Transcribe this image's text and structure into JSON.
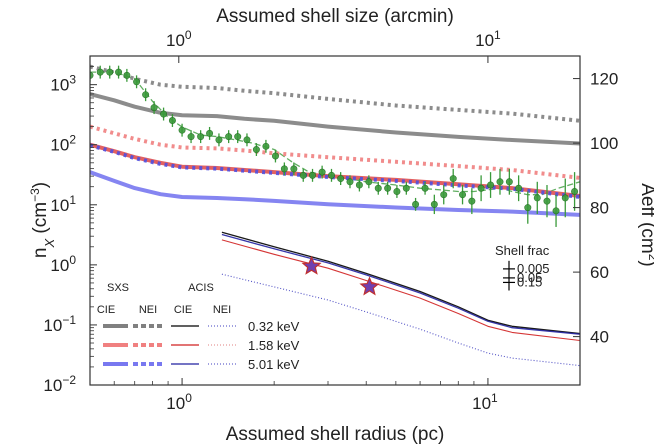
{
  "chart_data": {
    "type": "line",
    "xlabel_bottom": "Assumed shell radius (pc)",
    "xlabel_top": "Assumed shell size (arcmin)",
    "ylabel_left": "n_X (cm^-3)",
    "ylabel_right": "Aeff (cm^2)",
    "x_scale": "log",
    "xlim": [
      0.5,
      20
    ],
    "ylim_left": [
      0.01,
      3000
    ],
    "y_scale_left": "log",
    "ylim_right": [
      25,
      127
    ],
    "y_scale_right": "linear",
    "grid": false,
    "x_ticks": [
      {
        "v": 1,
        "t": "10",
        "e": "0"
      },
      {
        "v": 10,
        "t": "10",
        "e": "1"
      }
    ],
    "x_top_ticks": [
      {
        "v": 0.8,
        "t": "10",
        "e": "0"
      },
      {
        "v": 8.2,
        "t": "10",
        "e": "1"
      }
    ],
    "y_ticks": [
      {
        "v": 0.01,
        "t": "10",
        "e": "−2"
      },
      {
        "v": 0.1,
        "t": "10",
        "e": "−1"
      },
      {
        "v": 1,
        "t": "10",
        "e": "0"
      },
      {
        "v": 10,
        "t": "10",
        "e": "1"
      },
      {
        "v": 100,
        "t": "10",
        "e": "2"
      },
      {
        "v": 1000,
        "t": "10",
        "e": "3"
      }
    ],
    "y_right_ticks": [
      40,
      60,
      80,
      100,
      120
    ],
    "series": [
      {
        "name": "SXS CIE 0.32 keV",
        "color": "#808080",
        "dash": "",
        "width": 4,
        "x": [
          0.5,
          0.6,
          0.7,
          0.85,
          1.0,
          1.3,
          1.6,
          2.0,
          3.0,
          5.0,
          8.0,
          12.0,
          20.0
        ],
        "y": [
          700,
          550,
          430,
          340,
          310,
          300,
          270,
          250,
          200,
          160,
          135,
          120,
          105
        ]
      },
      {
        "name": "SXS NEI 0.32 keV",
        "color": "#808080",
        "dash": "3,4",
        "width": 4,
        "x": [
          0.5,
          0.6,
          0.7,
          0.85,
          1.0,
          1.3,
          1.6,
          2.0,
          3.0,
          5.0,
          8.0,
          12.0,
          20.0
        ],
        "y": [
          2000,
          1600,
          1250,
          1000,
          920,
          880,
          790,
          720,
          580,
          450,
          380,
          330,
          250
        ]
      },
      {
        "name": "SXS CIE 1.58 keV",
        "color": "#e05050",
        "dash": "",
        "width": 4,
        "x": [
          0.5,
          0.6,
          0.7,
          0.85,
          1.0,
          1.3,
          1.6,
          2.0,
          3.0,
          5.0,
          8.0,
          12.0,
          20.0
        ],
        "y": [
          100,
          78,
          62,
          50,
          43,
          41,
          38,
          35,
          30,
          26,
          22,
          19,
          14
        ]
      },
      {
        "name": "SXS NEI 1.58 keV",
        "color": "#f08080",
        "dash": "3,4",
        "width": 4,
        "x": [
          0.5,
          0.6,
          0.7,
          0.85,
          1.0,
          1.3,
          1.6,
          2.0,
          3.0,
          5.0,
          8.0,
          12.0,
          20.0
        ],
        "y": [
          200,
          155,
          125,
          100,
          90,
          87,
          80,
          72,
          62,
          52,
          44,
          38,
          28
        ]
      },
      {
        "name": "SXS CIE 5.01 keV",
        "color": "#7878f0",
        "dash": "",
        "width": 4,
        "x": [
          0.5,
          0.6,
          0.7,
          0.85,
          1.0,
          1.3,
          1.6,
          2.0,
          3.0,
          5.0,
          8.0,
          12.0,
          20.0
        ],
        "y": [
          35,
          25,
          19,
          15,
          13.5,
          13,
          12.4,
          11.6,
          10.2,
          9.0,
          8.2,
          7.7,
          6.8
        ]
      },
      {
        "name": "SXS NEI 5.01 keV",
        "color": "#5050e0",
        "dash": "3,4",
        "width": 4,
        "x": [
          0.5,
          0.6,
          0.7,
          0.85,
          1.0,
          1.3,
          1.6,
          2.0,
          3.0,
          5.0,
          8.0,
          12.0,
          20.0
        ],
        "y": [
          98,
          76,
          60,
          48,
          42,
          40,
          37,
          34,
          29,
          25,
          21,
          18.5,
          13.5
        ]
      },
      {
        "name": "ACIS CIE 0.32 keV",
        "color": "#000000",
        "dash": "",
        "width": 1.3,
        "x": [
          1.35,
          2.0,
          3.0,
          4.0,
          6.0,
          8.0,
          10.0,
          12.0,
          20.0
        ],
        "y": [
          3.5,
          2.0,
          1.15,
          0.72,
          0.36,
          0.2,
          0.12,
          0.095,
          0.072
        ]
      },
      {
        "name": "ACIS CIE 5.01 keV",
        "color": "#2020a0",
        "dash": "",
        "width": 1.3,
        "x": [
          1.35,
          2.0,
          3.0,
          4.0,
          6.0,
          8.0,
          10.0,
          12.0,
          20.0
        ],
        "y": [
          3.2,
          1.85,
          1.08,
          0.68,
          0.34,
          0.19,
          0.115,
          0.09,
          0.07
        ]
      },
      {
        "name": "ACIS CIE 1.58 keV",
        "color": "#d02020",
        "dash": "",
        "width": 1.1,
        "x": [
          1.35,
          2.0,
          3.0,
          4.0,
          6.0,
          8.0,
          10.0,
          12.0,
          20.0
        ],
        "y": [
          2.6,
          1.5,
          0.88,
          0.55,
          0.28,
          0.155,
          0.095,
          0.075,
          0.055
        ]
      },
      {
        "name": "ACIS NEI 5.01 keV",
        "color": "#4040c0",
        "dash": "1,2",
        "width": 1.1,
        "x": [
          1.35,
          2.0,
          3.0,
          4.0,
          6.0,
          8.0,
          10.0,
          12.0,
          20.0
        ],
        "y": [
          0.7,
          0.43,
          0.26,
          0.165,
          0.085,
          0.05,
          0.034,
          0.028,
          0.021
        ]
      }
    ],
    "stars": [
      {
        "x": 2.65,
        "y": 0.95
      },
      {
        "x": 4.1,
        "y": 0.43
      }
    ],
    "points": {
      "name": "Aeff data",
      "color": "#3a9a3a",
      "x": [
        0.5,
        0.54,
        0.58,
        0.62,
        0.66,
        0.71,
        0.76,
        0.81,
        0.87,
        0.93,
        1.0,
        1.07,
        1.15,
        1.23,
        1.32,
        1.42,
        1.52,
        1.63,
        1.75,
        1.88,
        2.02,
        2.16,
        2.32,
        2.49,
        2.67,
        2.87,
        3.08,
        3.3,
        3.54,
        3.8,
        4.08,
        4.38,
        4.7,
        5.04,
        5.41,
        5.8,
        6.23,
        6.68,
        7.17,
        7.7,
        8.26,
        8.86,
        9.5,
        10.2,
        10.95,
        11.75,
        12.6,
        13.5,
        14.5,
        15.6,
        16.7,
        17.9,
        19.2
      ],
      "y": [
        121,
        122,
        122,
        122,
        121,
        119,
        115,
        111,
        109,
        107,
        104,
        102,
        102,
        103,
        101,
        102,
        102,
        101,
        98,
        99,
        96,
        92,
        92,
        90,
        90,
        91,
        90,
        89,
        88,
        87,
        88,
        86,
        86,
        85,
        86,
        81,
        86,
        81,
        84,
        89,
        84,
        82,
        86,
        87,
        88,
        88,
        86,
        80,
        83,
        82,
        79,
        83,
        85
      ],
      "err": [
        2,
        2,
        2,
        2,
        2,
        2,
        2,
        2,
        2,
        2,
        2,
        2,
        2,
        2,
        2,
        2,
        2,
        2,
        2,
        2,
        2,
        2,
        2,
        2,
        2,
        2,
        2,
        2,
        2,
        2,
        2,
        2,
        2,
        2,
        2,
        2,
        2,
        3,
        3,
        3,
        3,
        4,
        4,
        4,
        4,
        4,
        4,
        5,
        5,
        5,
        5,
        6,
        6
      ]
    },
    "fit_curve": {
      "name": "fit",
      "color": "#3a9a3a",
      "x": [
        0.5,
        0.6,
        0.7,
        0.8,
        0.9,
        1.0,
        1.15,
        1.3,
        1.5,
        1.7,
        2.0,
        2.3,
        2.6,
        3.0,
        3.5,
        4.0,
        5.0,
        6.0,
        7.0,
        8.0,
        9.0,
        10.0,
        11.0,
        12.0,
        13.5,
        15.0,
        17.0,
        20.0
      ],
      "y": [
        122,
        122,
        120,
        113,
        108,
        105,
        102.5,
        102,
        101,
        100,
        98,
        94,
        91,
        90,
        89,
        88,
        87,
        86,
        85.5,
        85,
        85,
        85.5,
        86,
        85,
        84,
        84,
        86,
        88
      ]
    },
    "error_scale": {
      "title": "Shell frac",
      "labels": [
        "0.005",
        "0.05",
        "0.15"
      ],
      "aeff": [
        61,
        58.2,
        56.8
      ]
    }
  },
  "legend": {
    "head_sxs": "SXS",
    "head_acis": "ACIS",
    "cols": [
      "CIE",
      "NEI",
      "CIE",
      "NEI"
    ],
    "rows": [
      {
        "label": "0.32 keV",
        "sxs_color": "#808080",
        "acis_cie": "#000000",
        "acis_nei": "#4040c0"
      },
      {
        "label": "1.58 keV",
        "sxs_color": "#f08080",
        "acis_cie": "#d02020",
        "acis_nei": "#e08080"
      },
      {
        "label": "5.01 keV",
        "sxs_color": "#7878f0",
        "acis_cie": "#2020a0",
        "acis_nei": "#4040c0"
      }
    ]
  }
}
